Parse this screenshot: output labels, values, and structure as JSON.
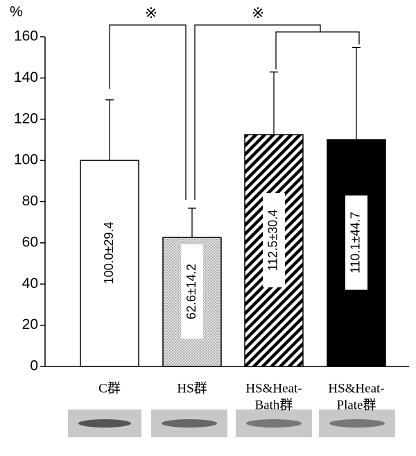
{
  "chart_data": {
    "type": "bar",
    "y_label": "%",
    "categories": [
      [
        "C群"
      ],
      [
        "HS群"
      ],
      [
        "HS&Heat-",
        "Bath群"
      ],
      [
        "HS&Heat-",
        "Plate群"
      ]
    ],
    "values": [
      100.0,
      62.6,
      112.5,
      110.1
    ],
    "errors": [
      29.4,
      14.2,
      30.4,
      44.7
    ],
    "value_labels": [
      "100.0±29.4",
      "62.6±14.2",
      "112.5±30.4",
      "110.1±44.7"
    ],
    "fills": [
      "#ffffff",
      "dots",
      "stripes",
      "#000000"
    ],
    "ylim": [
      0,
      160
    ],
    "yticks": [
      0,
      20,
      40,
      60,
      80,
      100,
      120,
      140,
      160
    ],
    "annotations": [
      "※",
      "※"
    ]
  }
}
